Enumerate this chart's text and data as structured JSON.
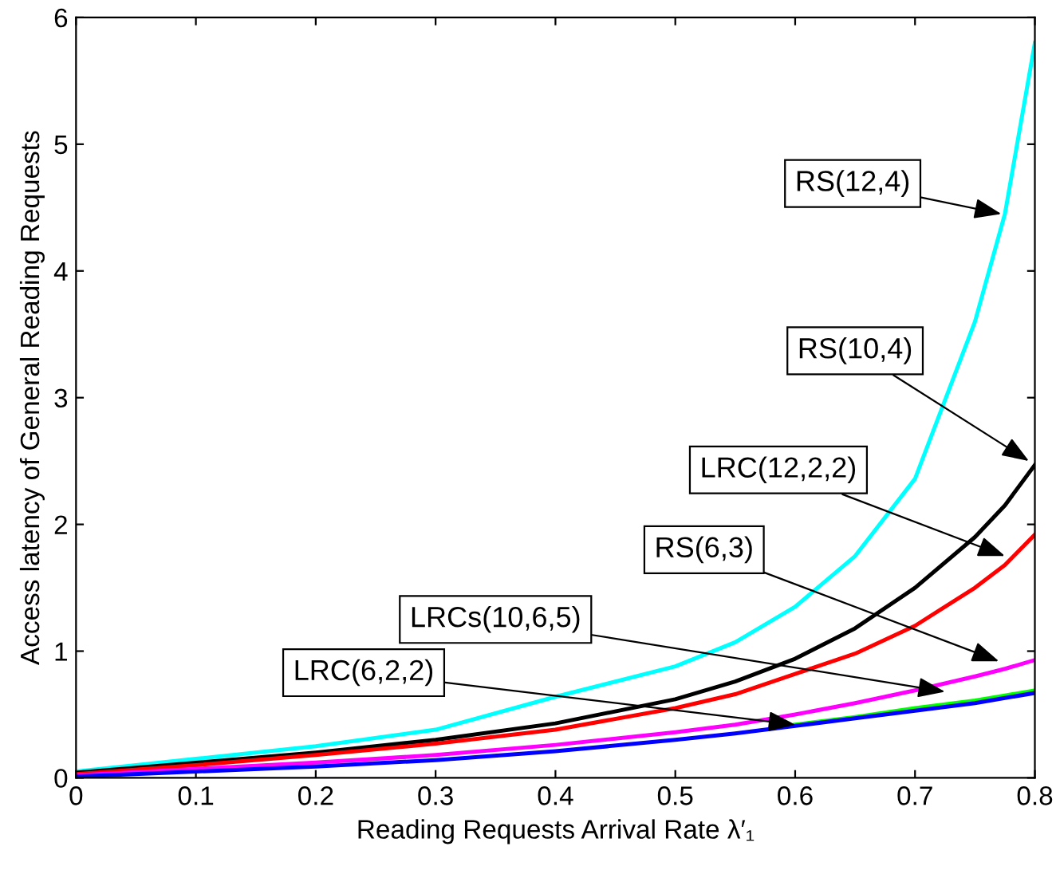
{
  "chart_data": {
    "type": "line",
    "xlabel": "Reading Requests Arrival Rate λ′₁",
    "ylabel": "Access latency of General Reading Requests",
    "x": [
      0,
      0.1,
      0.2,
      0.3,
      0.4,
      0.5,
      0.55,
      0.6,
      0.65,
      0.7,
      0.75,
      0.775,
      0.8
    ],
    "series": [
      {
        "color": "#00ffff",
        "values": [
          0.05,
          0.15,
          0.25,
          0.38,
          0.64,
          0.88,
          1.07,
          1.35,
          1.75,
          2.36,
          3.6,
          4.45,
          5.8
        ]
      },
      {
        "color": "#000000",
        "values": [
          0.04,
          0.12,
          0.2,
          0.3,
          0.43,
          0.62,
          0.76,
          0.94,
          1.18,
          1.5,
          1.9,
          2.15,
          2.47
        ]
      },
      {
        "color": "#ff0000",
        "values": [
          0.03,
          0.1,
          0.18,
          0.27,
          0.38,
          0.55,
          0.66,
          0.82,
          0.98,
          1.2,
          1.5,
          1.68,
          1.92
        ]
      },
      {
        "color": "#ff00ff",
        "values": [
          0.02,
          0.07,
          0.12,
          0.18,
          0.26,
          0.36,
          0.42,
          0.5,
          0.59,
          0.69,
          0.8,
          0.86,
          0.93
        ]
      },
      {
        "color": "#00ff00",
        "values": [
          null,
          null,
          null,
          null,
          null,
          null,
          null,
          0.42,
          0.48,
          0.55,
          0.61,
          0.65,
          0.69
        ]
      },
      {
        "color": "#0000ff",
        "values": [
          0.01,
          0.05,
          0.09,
          0.14,
          0.21,
          0.3,
          0.35,
          0.41,
          0.47,
          0.53,
          0.59,
          0.63,
          0.67
        ]
      }
    ],
    "annotations": [
      {
        "text": "RS(12,4)",
        "x": 0.772,
        "y": 4.45
      },
      {
        "text": "RS(10,4)",
        "x": 0.795,
        "y": 2.5
      },
      {
        "text": "LRC(12,2,2)",
        "x": 0.775,
        "y": 1.75
      },
      {
        "text": "RS(6,3)",
        "x": 0.77,
        "y": 0.92
      },
      {
        "text": "LRCs(10,6,5)",
        "x": 0.725,
        "y": 0.68
      },
      {
        "text": "LRC(6,2,2)",
        "x": 0.6,
        "y": 0.42
      }
    ],
    "xlim": [
      0,
      0.8
    ],
    "ylim": [
      0,
      6
    ],
    "xticks": [
      0,
      0.1,
      0.2,
      0.3,
      0.4,
      0.5,
      0.6,
      0.7,
      0.8
    ],
    "yticks": [
      0,
      1,
      2,
      3,
      4,
      5,
      6
    ],
    "grid": false,
    "legend": false,
    "marker": "none",
    "line_style": "solid"
  }
}
